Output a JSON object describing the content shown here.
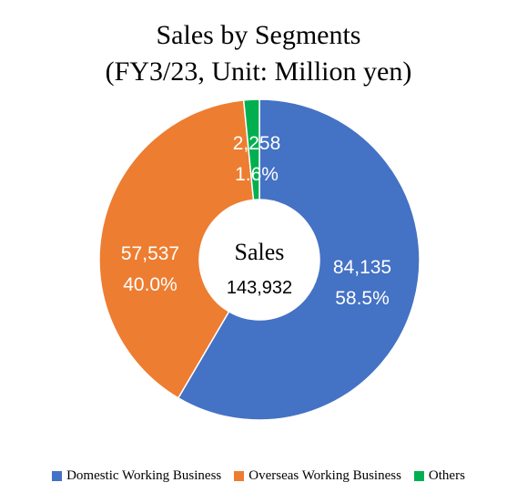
{
  "chart_data": {
    "type": "pie",
    "variant": "donut",
    "title": "Sales by Segments",
    "subtitle": "(FY3/23, Unit: Million yen)",
    "center_label": "Sales",
    "center_value": "143,932",
    "total": 143932,
    "slices": [
      {
        "name": "Domestic Working Business",
        "value": 84135,
        "value_label": "84,135",
        "percent_label": "58.5%",
        "color": "#4472C4"
      },
      {
        "name": "Overseas Working Business",
        "value": 57537,
        "value_label": "57,537",
        "percent_label": "40.0%",
        "color": "#ED7D31"
      },
      {
        "name": "Others",
        "value": 2258,
        "value_label": "2,258",
        "percent_label": "1.6%",
        "color": "#00B050"
      }
    ],
    "legend_position": "bottom"
  }
}
